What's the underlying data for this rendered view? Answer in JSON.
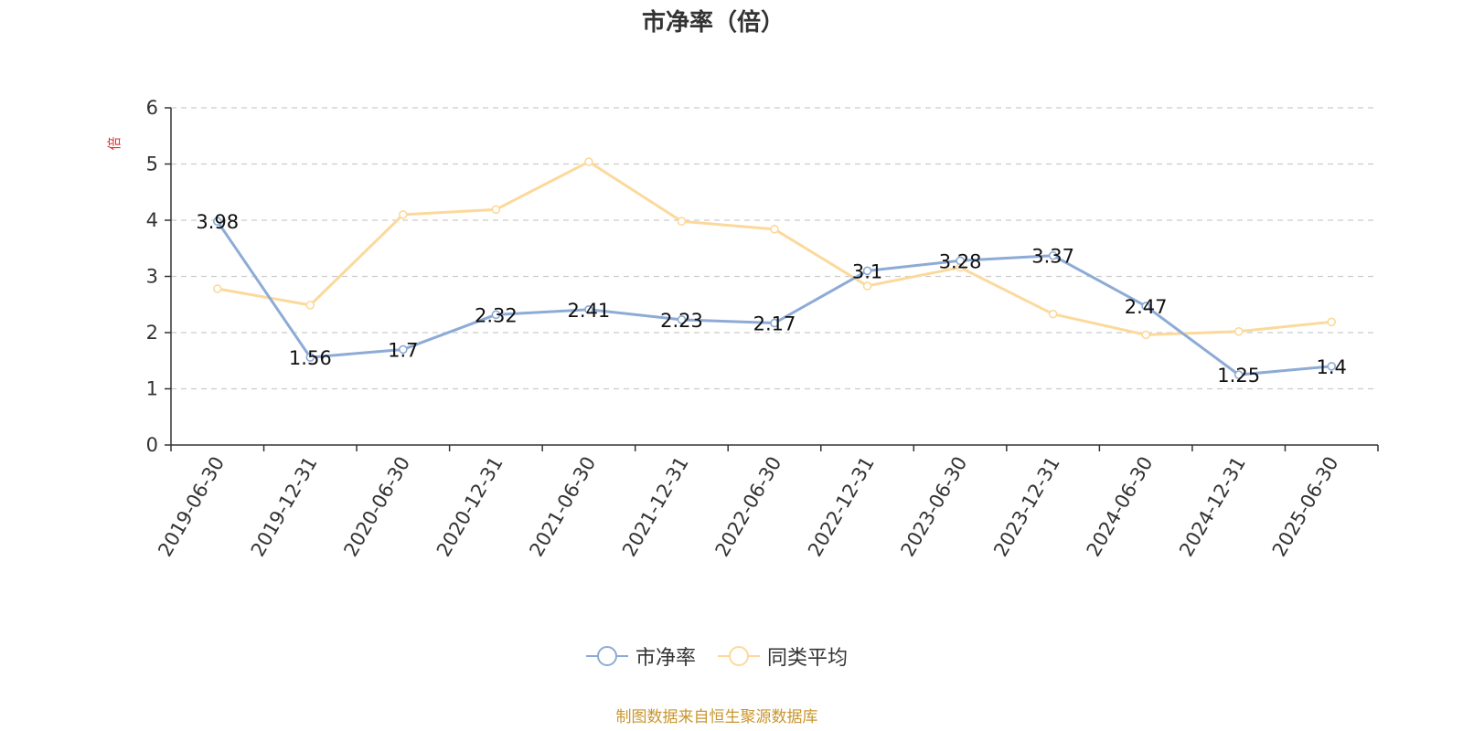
{
  "colors": {
    "series1": "#8dabd6",
    "series2": "#fcd99b",
    "grid": "#cccccc",
    "axis": "#333333",
    "unit": "#e03030",
    "source": "#c8962e"
  },
  "chart_data": {
    "type": "line",
    "title": "市净率（倍）",
    "ylabel": "倍",
    "ylim": [
      0,
      6
    ],
    "yticks": [
      "0",
      "1",
      "2",
      "3",
      "4",
      "5",
      "6"
    ],
    "grid": true,
    "legend_position": "bottom",
    "categories": [
      "2019-06-30",
      "2019-12-31",
      "2020-06-30",
      "2020-12-31",
      "2021-06-30",
      "2021-12-31",
      "2022-06-30",
      "2022-12-31",
      "2023-06-30",
      "2023-12-31",
      "2024-06-30",
      "2024-12-31",
      "2025-06-30"
    ],
    "series": [
      {
        "name": "市净率",
        "values": [
          3.98,
          1.56,
          1.7,
          2.32,
          2.41,
          2.23,
          2.17,
          3.1,
          3.28,
          3.37,
          2.47,
          1.25,
          1.4
        ],
        "labels": [
          "3.98",
          "1.56",
          "1.7",
          "2.32",
          "2.41",
          "2.23",
          "2.17",
          "3.1",
          "3.28",
          "3.37",
          "2.47",
          "1.25",
          "1.4"
        ]
      },
      {
        "name": "同类平均",
        "values": [
          2.78,
          2.49,
          4.1,
          4.19,
          5.04,
          3.98,
          3.84,
          2.83,
          3.16,
          2.33,
          1.96,
          2.02,
          2.19
        ]
      }
    ]
  },
  "legend": {
    "series1_label": "市净率",
    "series2_label": "同类平均"
  },
  "source": "制图数据来自恒生聚源数据库"
}
